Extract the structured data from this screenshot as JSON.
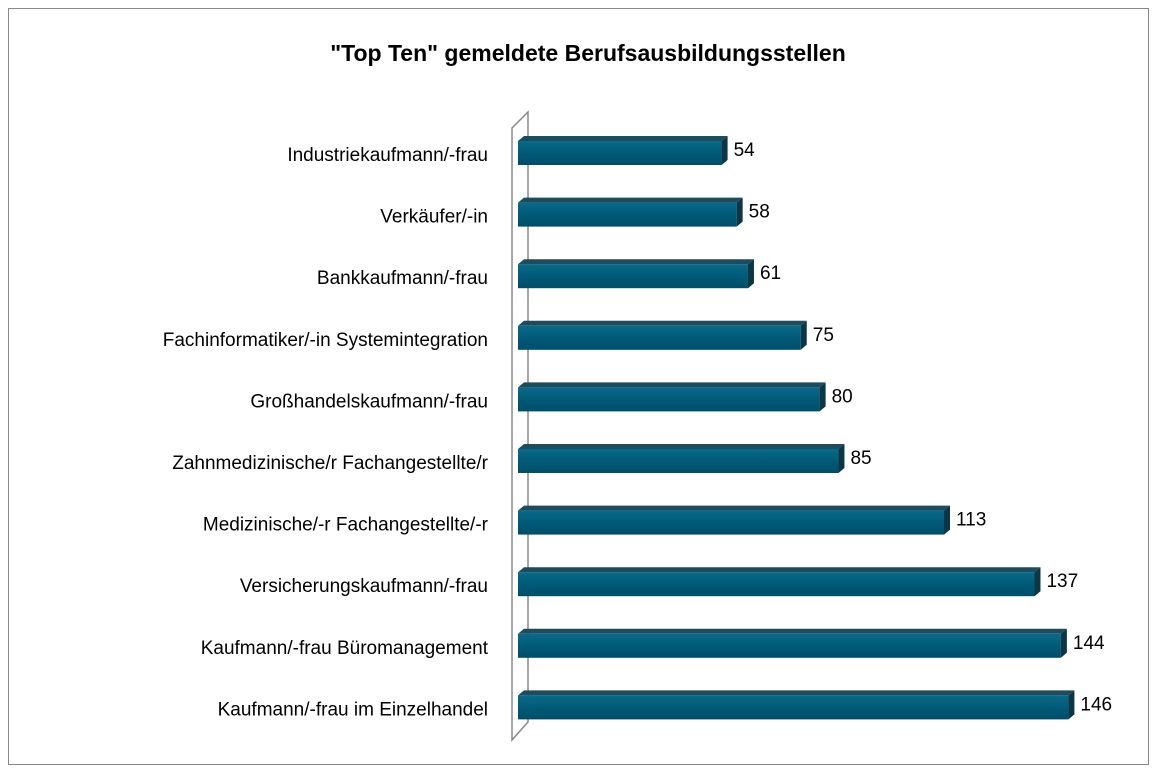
{
  "chart_data": {
    "type": "bar",
    "orientation": "horizontal",
    "title": "\"Top Ten\" gemeldete Berufsausbildungsstellen",
    "categories": [
      "Industriekaufmann/-frau",
      "Verkäufer/-in",
      "Bankkaufmann/-frau",
      "Fachinformatiker/-in Systemintegration",
      "Großhandelskaufmann/-frau",
      "Zahnmedizinische/r Fachangestellte/r",
      "Medizinische/-r Fachangestellte/-r",
      "Versicherungskaufmann/-frau",
      "Kaufmann/-frau Büromanagement",
      "Kaufmann/-frau im Einzelhandel"
    ],
    "values": [
      54,
      58,
      61,
      75,
      80,
      85,
      113,
      137,
      144,
      146
    ],
    "color": "#005a78"
  }
}
